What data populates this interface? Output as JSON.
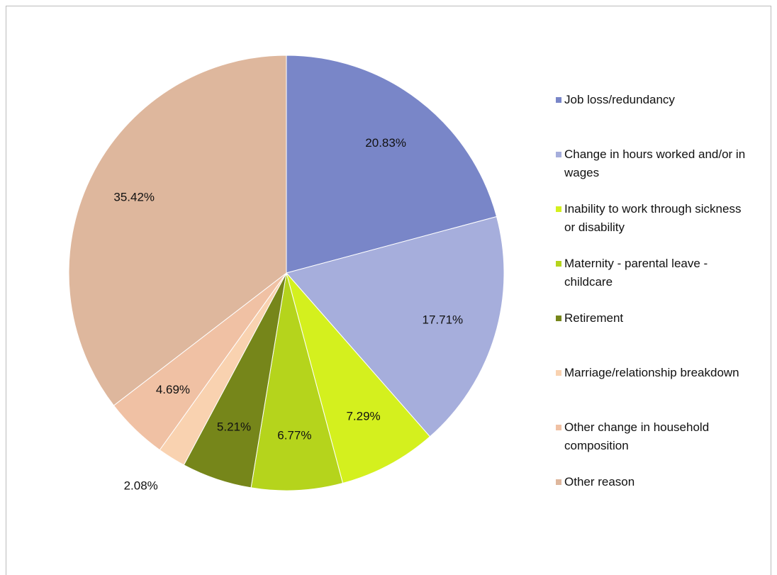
{
  "chart_data": {
    "type": "pie",
    "categories": [
      "Job loss/redundancy",
      "Change in hours worked and/or in wages",
      "Inability to work through sickness or disability",
      "Maternity - parental leave - childcare",
      "Retirement",
      "Marriage/relationship breakdown",
      "Other change in household composition",
      "Other reason"
    ],
    "values": [
      20.83,
      17.71,
      7.29,
      6.77,
      5.21,
      2.08,
      4.69,
      35.42
    ],
    "value_labels": [
      "20.83%",
      "17.71%",
      "7.29%",
      "6.77%",
      "5.21%",
      "2.08%",
      "4.69%",
      "35.42%"
    ],
    "colors": [
      "#7986c8",
      "#a6aedc",
      "#d4f01e",
      "#b5d41c",
      "#76861a",
      "#f9d2b0",
      "#f0c1a4",
      "#deb79d"
    ],
    "legend": "right"
  }
}
